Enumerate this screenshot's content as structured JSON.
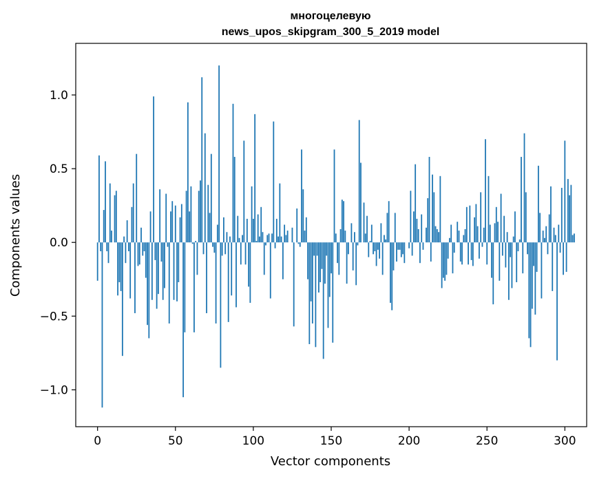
{
  "chart_data": {
    "type": "bar",
    "title_lines": [
      "многоцелевую",
      "news_upos_skipgram_300_5_2019 model"
    ],
    "xlabel": "Vector components",
    "ylabel": "Components values",
    "xlim": [
      -14,
      314
    ],
    "ylim": [
      -1.25,
      1.35
    ],
    "xticks": [
      0,
      50,
      100,
      150,
      200,
      250,
      300
    ],
    "xtick_labels": [
      "0",
      "50",
      "100",
      "150",
      "200",
      "250",
      "300"
    ],
    "yticks": [
      -1.0,
      -0.5,
      0.0,
      0.5,
      1.0
    ],
    "ytick_labels": [
      "−1.0",
      "−0.5",
      "0.0",
      "0.5",
      "1.0"
    ],
    "grid": false,
    "bar_color": "#1f77b4",
    "values": [
      -0.26,
      0.59,
      -0.06,
      -1.12,
      0.22,
      0.55,
      -0.06,
      -0.14,
      0.4,
      0.08,
      0.0,
      0.32,
      0.35,
      -0.36,
      -0.27,
      -0.33,
      -0.77,
      0.04,
      -0.14,
      0.15,
      -0.06,
      -0.38,
      0.24,
      0.4,
      -0.48,
      0.6,
      -0.16,
      -0.15,
      0.1,
      -0.09,
      -0.06,
      -0.24,
      -0.56,
      -0.65,
      0.21,
      -0.39,
      0.99,
      -0.12,
      -0.45,
      -0.35,
      0.36,
      -0.13,
      -0.39,
      -0.31,
      0.33,
      -0.03,
      -0.55,
      0.21,
      0.28,
      -0.39,
      0.25,
      -0.4,
      -0.27,
      0.17,
      0.26,
      -1.05,
      -0.61,
      0.35,
      0.95,
      0.21,
      0.38,
      -0.01,
      -0.61,
      0.01,
      -0.22,
      0.35,
      0.42,
      1.12,
      -0.08,
      0.74,
      -0.48,
      0.39,
      0.2,
      0.6,
      -0.03,
      -0.07,
      -0.55,
      0.12,
      1.2,
      -0.85,
      -0.09,
      0.17,
      -0.08,
      0.07,
      -0.54,
      0.04,
      -0.36,
      0.94,
      0.58,
      -0.44,
      0.18,
      0.03,
      -0.15,
      0.05,
      0.69,
      -0.15,
      0.16,
      -0.3,
      -0.41,
      0.38,
      0.16,
      0.87,
      0.01,
      0.19,
      0.04,
      0.24,
      0.07,
      -0.22,
      -0.02,
      0.05,
      0.06,
      -0.38,
      0.06,
      0.82,
      -0.04,
      0.16,
      0.04,
      0.4,
      0.04,
      -0.25,
      0.12,
      0.05,
      0.08,
      0.0,
      0.0,
      0.1,
      -0.57,
      0.0,
      0.23,
      -0.01,
      -0.03,
      0.63,
      0.36,
      0.08,
      0.17,
      -0.25,
      -0.69,
      -0.4,
      -0.55,
      -0.09,
      -0.71,
      -0.09,
      -0.34,
      -0.27,
      -0.18,
      -0.79,
      -0.28,
      -0.09,
      -0.58,
      -0.37,
      -0.21,
      -0.68,
      0.63,
      0.06,
      -0.14,
      -0.22,
      0.09,
      0.29,
      0.28,
      0.08,
      -0.28,
      -0.08,
      0.0,
      0.13,
      -0.19,
      0.07,
      -0.29,
      -0.02,
      0.83,
      0.54,
      0.0,
      0.27,
      0.06,
      0.18,
      -0.1,
      0.01,
      0.12,
      -0.08,
      -0.06,
      -0.16,
      -0.05,
      -0.11,
      0.13,
      -0.22,
      0.05,
      0.02,
      0.2,
      0.28,
      -0.41,
      -0.46,
      -0.19,
      0.2,
      -0.13,
      -0.05,
      -0.05,
      -0.1,
      -0.08,
      -0.14,
      0.0,
      0.0,
      -0.04,
      0.35,
      -0.09,
      0.21,
      0.53,
      0.16,
      0.09,
      -0.14,
      0.19,
      -0.05,
      0.0,
      0.1,
      0.3,
      0.58,
      -0.13,
      0.46,
      0.34,
      0.11,
      0.09,
      0.07,
      0.45,
      -0.31,
      -0.24,
      -0.26,
      -0.22,
      -0.11,
      0.03,
      0.12,
      -0.21,
      -0.07,
      0.0,
      0.14,
      0.08,
      -0.13,
      -0.15,
      0.05,
      0.09,
      0.24,
      -0.15,
      0.25,
      -0.12,
      -0.16,
      0.17,
      0.26,
      0.11,
      -0.11,
      0.34,
      -0.03,
      0.1,
      0.7,
      -0.15,
      0.45,
      0.12,
      -0.24,
      -0.42,
      0.13,
      0.24,
      0.14,
      -0.26,
      0.33,
      -0.09,
      0.18,
      -0.17,
      0.07,
      -0.39,
      -0.1,
      -0.31,
      0.04,
      0.21,
      -0.27,
      -0.06,
      0.02,
      0.58,
      -0.21,
      0.74,
      0.34,
      -0.08,
      -0.65,
      -0.71,
      -0.45,
      -0.16,
      -0.49,
      -0.2,
      0.52,
      0.2,
      -0.38,
      0.08,
      0.03,
      0.11,
      -0.08,
      0.19,
      0.38,
      -0.33,
      0.1,
      0.05,
      -0.8,
      0.12,
      -0.07,
      0.37,
      -0.22,
      0.69,
      -0.2,
      0.43,
      0.32,
      0.39,
      0.05,
      0.06
    ]
  }
}
